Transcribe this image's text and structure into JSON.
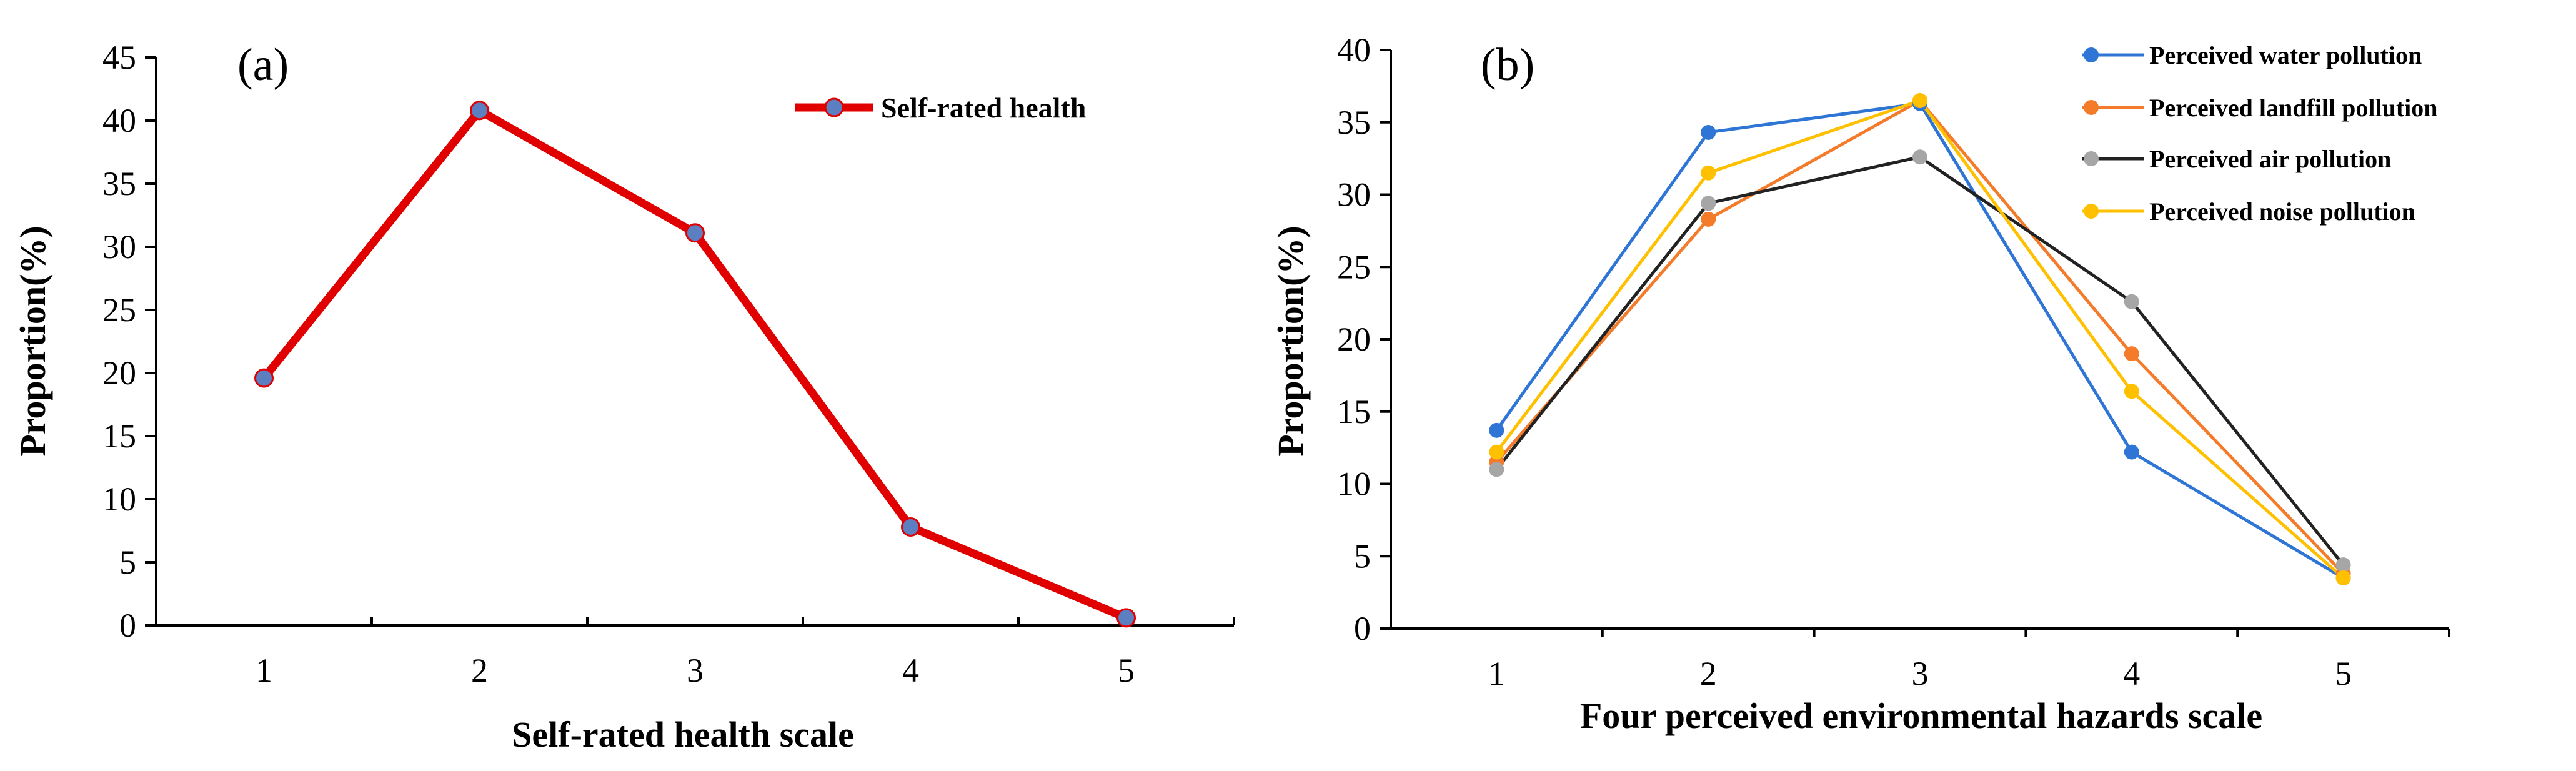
{
  "chart_data": [
    {
      "panel": "(a)",
      "type": "line",
      "x": [
        1,
        2,
        3,
        4,
        5
      ],
      "xlim": [
        0.5,
        5.5
      ],
      "ylim": [
        0,
        45
      ],
      "yticks": [
        0,
        5,
        10,
        15,
        20,
        25,
        30,
        35,
        40,
        45
      ],
      "xlabel": "Self-rated health scale",
      "ylabel": "Proportion(%)",
      "legend_position": "top-right",
      "series": [
        {
          "name": "Self-rated health",
          "color": "#e00000",
          "marker_color": "#5b7fc0",
          "values": [
            19.6,
            40.8,
            31.1,
            7.8,
            0.6
          ]
        }
      ]
    },
    {
      "panel": "(b)",
      "type": "line",
      "x": [
        1,
        2,
        3,
        4,
        5
      ],
      "xlim": [
        0.5,
        5.5
      ],
      "ylim": [
        0,
        40
      ],
      "yticks": [
        0,
        5,
        10,
        15,
        20,
        25,
        30,
        35,
        40
      ],
      "xlabel": "Four perceived environmental hazards scale",
      "ylabel": "Proportion(%)",
      "legend_position": "top-right",
      "series": [
        {
          "name": "Perceived water pollution",
          "color": "#2e75d6",
          "values": [
            13.7,
            34.3,
            36.3,
            12.2,
            3.5
          ]
        },
        {
          "name": "Perceived landfill pollution",
          "color": "#f47b2a",
          "values": [
            11.5,
            28.3,
            36.5,
            19.0,
            3.8
          ]
        },
        {
          "name": "Perceived air pollution",
          "color": "#222222",
          "marker_color": "#a6a6a6",
          "values": [
            11.0,
            29.4,
            32.6,
            22.6,
            4.4
          ]
        },
        {
          "name": "Perceived noise pollution",
          "color": "#ffc000",
          "values": [
            12.2,
            31.5,
            36.5,
            16.4,
            3.5
          ]
        }
      ]
    }
  ]
}
